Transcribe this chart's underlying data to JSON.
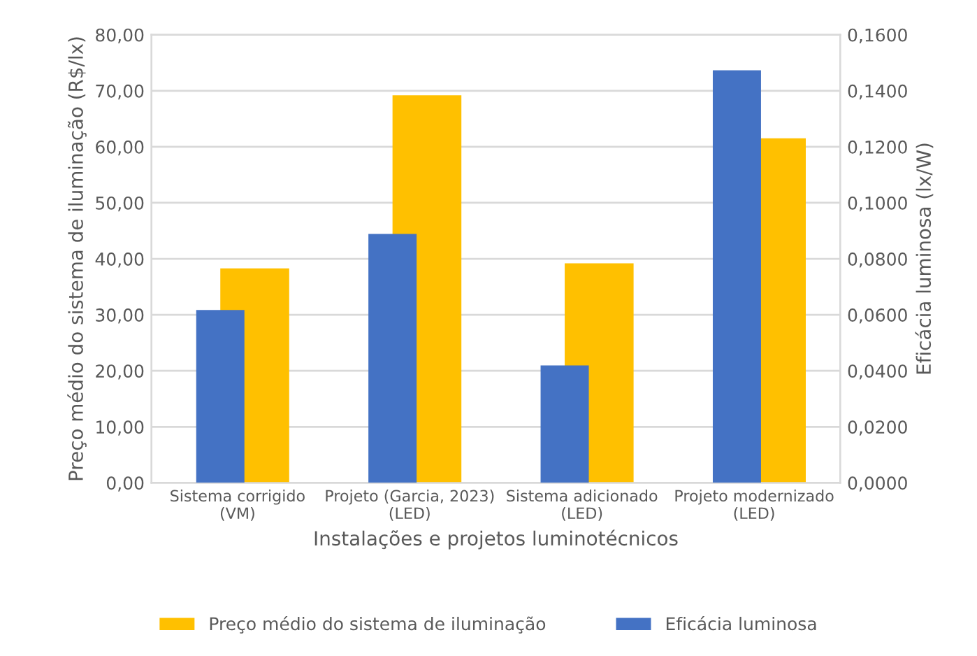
{
  "chart_data": {
    "type": "bar",
    "xlabel": "Instalações e projetos luminotécnicos",
    "ylabel": "Preço médio do sistema de iluminação (R$/lx)",
    "y2label": "Eficácia luminosa (lx/W)",
    "categories": [
      "Sistema corrigido\n(VM)",
      "Projeto (Garcia, 2023)\n(LED)",
      "Sistema adicionado\n(LED)",
      "Projeto modernizado\n(LED)"
    ],
    "series": [
      {
        "name": "Preço médio do sistema de iluminação",
        "color": "#ffc000",
        "values": [
          38.3,
          69.2,
          39.2,
          61.5
        ]
      },
      {
        "name": "Eficácia luminosa",
        "color": "#4472c4",
        "axis": "y2",
        "values": [
          0.0617,
          0.0889,
          0.0419,
          0.1473
        ]
      }
    ],
    "ylim": [
      0,
      80
    ],
    "yticks": [
      {
        "value": 0,
        "label": "0,00"
      },
      {
        "value": 10,
        "label": "10,00"
      },
      {
        "value": 20,
        "label": "20,00"
      },
      {
        "value": 30,
        "label": "30,00"
      },
      {
        "value": 40,
        "label": "40,00"
      },
      {
        "value": 50,
        "label": "50,00"
      },
      {
        "value": 60,
        "label": "60,00"
      },
      {
        "value": 70,
        "label": "70,00"
      },
      {
        "value": 80,
        "label": "80,00"
      }
    ],
    "y2lim": [
      0,
      0.16
    ],
    "y2ticks": [
      {
        "value": 0,
        "label": "0,0000"
      },
      {
        "value": 0.02,
        "label": "0,0200"
      },
      {
        "value": 0.04,
        "label": "0,0400"
      },
      {
        "value": 0.06,
        "label": "0,0600"
      },
      {
        "value": 0.08,
        "label": "0,0800"
      },
      {
        "value": 0.1,
        "label": "0,1000"
      },
      {
        "value": 0.12,
        "label": "0,1200"
      },
      {
        "value": 0.14,
        "label": "0,1400"
      },
      {
        "value": 0.16,
        "label": "0,1600"
      }
    ],
    "grid": "y",
    "legend": "bottom"
  }
}
